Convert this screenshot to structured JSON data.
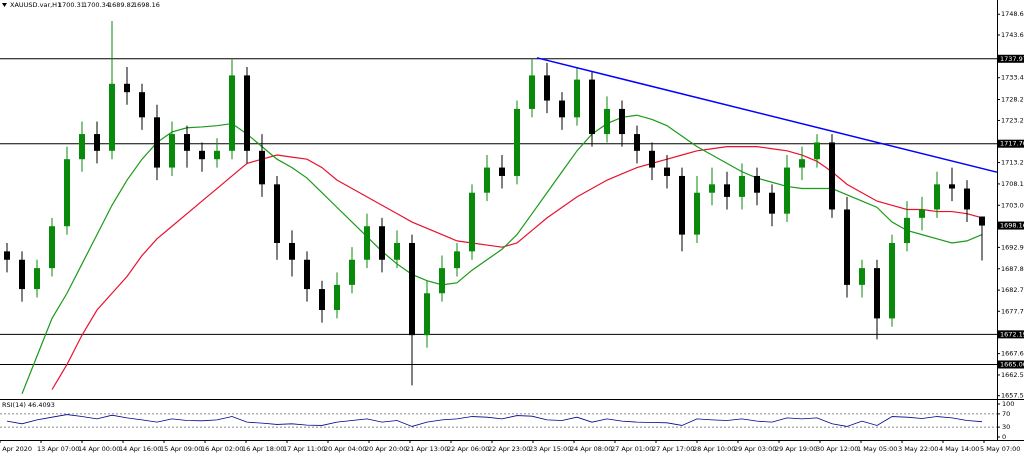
{
  "chart_data": {
    "type": "candlestick",
    "symbol": "XAUUSD.var,H1",
    "ohlc": {
      "open": [
        1692,
        1690,
        1683,
        1688,
        1698,
        1714,
        1720,
        1716,
        1732,
        1730,
        1724,
        1712,
        1720,
        1716,
        1714,
        1716,
        1734,
        1716,
        1708,
        1694,
        1690,
        1683,
        1678,
        1684,
        1690,
        1698,
        1690,
        1694,
        1672,
        1682,
        1688,
        1692,
        1706,
        1712,
        1710,
        1726,
        1734,
        1728,
        1724,
        1733,
        1720,
        1726,
        1720,
        1716,
        1712,
        1710,
        1696,
        1706,
        1708,
        1705,
        1710,
        1706,
        1701,
        1712,
        1714,
        1718,
        1702,
        1684,
        1688,
        1676,
        1694,
        1700,
        1702,
        1708,
        1707,
        1700.31
      ],
      "high": [
        1694,
        1692,
        1690,
        1700,
        1717,
        1723,
        1723,
        1747,
        1736,
        1732,
        1727,
        1723,
        1722,
        1718,
        1719,
        1738,
        1736,
        1720,
        1710,
        1697,
        1692,
        1685,
        1687,
        1693,
        1701,
        1700,
        1697,
        1696,
        1685,
        1691,
        1694,
        1708,
        1715,
        1715,
        1728,
        1738,
        1737,
        1730,
        1736,
        1735,
        1729,
        1728,
        1722,
        1718,
        1715,
        1712,
        1710,
        1712,
        1711,
        1713,
        1712,
        1708,
        1715,
        1717,
        1720,
        1720,
        1705,
        1690,
        1690,
        1696,
        1704,
        1705,
        1711,
        1712,
        1709,
        1700.34
      ],
      "low": [
        1687,
        1680,
        1681,
        1686,
        1696,
        1711,
        1713,
        1714,
        1727,
        1721,
        1709,
        1710,
        1712,
        1711,
        1712,
        1714,
        1713,
        1705,
        1690,
        1686,
        1680,
        1675,
        1676,
        1682,
        1688,
        1687,
        1688,
        1660,
        1669,
        1680,
        1686,
        1690,
        1704,
        1707,
        1708,
        1724,
        1725,
        1721,
        1722,
        1717,
        1718,
        1717,
        1713,
        1709,
        1707,
        1692,
        1694,
        1703,
        1702,
        1702,
        1703,
        1698,
        1699,
        1709,
        1712,
        1700,
        1681,
        1681,
        1671,
        1674,
        1692,
        1697,
        1700,
        1704,
        1699,
        1689.82
      ],
      "close": [
        1690,
        1683,
        1688,
        1698,
        1714,
        1720,
        1716,
        1732,
        1730,
        1724,
        1712,
        1720,
        1716,
        1714,
        1716,
        1734,
        1716,
        1708,
        1694,
        1690,
        1683,
        1678,
        1684,
        1690,
        1698,
        1690,
        1694,
        1672,
        1682,
        1688,
        1692,
        1706,
        1712,
        1710,
        1726,
        1734,
        1728,
        1724,
        1733,
        1720,
        1726,
        1720,
        1716,
        1712,
        1710,
        1696,
        1706,
        1708,
        1705,
        1710,
        1706,
        1701,
        1712,
        1714,
        1718,
        1702,
        1684,
        1688,
        1676,
        1694,
        1700,
        1702,
        1708,
        1707,
        1702,
        1698.16
      ]
    },
    "up_color": "#0a8a0a",
    "down_color": "#000000",
    "ylim": [
      1657,
      1752
    ],
    "yticks": [
      {
        "value": 1748.6,
        "label": "1748.60"
      },
      1743.65,
      1733.45,
      1728.25,
      1723.25,
      {
        "value": 1713.2,
        "label": "1713.20"
      },
      {
        "value": 1708.1,
        "label": "1708.10"
      },
      {
        "value": 1703,
        "label": "1703.00"
      },
      1692.95,
      1687.85,
      1682.75,
      {
        "value": 1677.7,
        "label": "1677.70"
      },
      {
        "value": 1667.6,
        "label": "1667.60"
      },
      {
        "value": 1662.5,
        "label": "1662.50"
      },
      1657.55
    ],
    "levels": [
      {
        "value": 1737.97,
        "label": "1737.97"
      },
      {
        "value": 1717.7,
        "label": "1717.70"
      },
      {
        "value": 1672.19,
        "label": "1672.19"
      },
      {
        "value": 1665,
        "label": "1665.00"
      }
    ],
    "last_price": {
      "value": 1698.16,
      "label": "1698.16"
    },
    "trendline": {
      "color": "#0000ff",
      "x": [
        35.33,
        66
      ],
      "y": [
        1738.2,
        1710.9
      ]
    },
    "moving_averages": [
      {
        "color": "#e8112d",
        "values": [
          null,
          null,
          null,
          1659,
          1665,
          1672,
          1678,
          1682,
          1686,
          1691,
          1695,
          1698,
          1701,
          1704,
          1707,
          1710,
          1713,
          1714,
          1715,
          1714.5,
          1714,
          1712,
          1709,
          1707,
          1705,
          1703,
          1701,
          1699,
          1697.5,
          1696,
          1694.5,
          1694,
          1693.5,
          1693,
          1694,
          1697,
          1700,
          1702.5,
          1705,
          1707,
          1709,
          1710.5,
          1712,
          1713,
          1714,
          1715,
          1716,
          1716.5,
          1717,
          1717,
          1717,
          1716.5,
          1716,
          1715,
          1713.5,
          1711,
          1708,
          1706,
          1704,
          1703,
          1702,
          1702,
          1701.5,
          1701.5,
          1701,
          1700
        ]
      },
      {
        "color": "#1a9a1a",
        "values": [
          null,
          1658,
          1667,
          1676,
          1682,
          1689,
          1696,
          1703,
          1709,
          1714,
          1718,
          1720.5,
          1721.5,
          1721.7,
          1722,
          1722.5,
          1720,
          1717,
          1714,
          1712,
          1709.5,
          1706,
          1702.5,
          1699,
          1695.5,
          1692,
          1689,
          1686.5,
          1685,
          1684,
          1684.5,
          1687.5,
          1690,
          1692.5,
          1696,
          1701,
          1706,
          1711,
          1716,
          1720,
          1722.5,
          1724,
          1724.5,
          1723.5,
          1722,
          1719.5,
          1717,
          1715,
          1713,
          1711,
          1709.5,
          1708.5,
          1707.5,
          1707,
          1707,
          1707,
          1705.5,
          1704,
          1702.5,
          1699,
          1697,
          1696,
          1695,
          1694,
          1694.5,
          1696
        ]
      }
    ],
    "time_labels": [
      "9 Apr 2020",
      "13 Apr 07:00",
      "14 Apr 00:00",
      "14 Apr 16:00",
      "15 Apr 09:00",
      "16 Apr 02:00",
      "16 Apr 18:00",
      "17 Apr 11:00",
      "20 Apr 04:00",
      "20 Apr 20:00",
      "21 Apr 13:00",
      "22 Apr 06:00",
      "22 Apr 23:00",
      "23 Apr 15:00",
      "24 Apr 08:00",
      "27 Apr 01:00",
      "27 Apr 17:00",
      "28 Apr 10:00",
      "29 Apr 03:00",
      "29 Apr 19:00",
      "30 Apr 12:00",
      "1 May 05:00",
      "3 May 22:00",
      "4 May 14:00",
      "5 May 07:00"
    ],
    "rsi": {
      "name": "RSI(14)",
      "color": "#00008b",
      "values": [
        48,
        40,
        52,
        60,
        68,
        62,
        55,
        66,
        58,
        52,
        45,
        55,
        50,
        49,
        52,
        62,
        45,
        42,
        38,
        40,
        36,
        35,
        45,
        50,
        55,
        45,
        50,
        32,
        45,
        52,
        55,
        62,
        60,
        55,
        65,
        63,
        52,
        50,
        60,
        45,
        55,
        48,
        45,
        44,
        43,
        35,
        55,
        52,
        50,
        55,
        48,
        45,
        58,
        55,
        58,
        40,
        32,
        48,
        35,
        62,
        60,
        56,
        62,
        58,
        50,
        46.4093
      ],
      "ylim": [
        0,
        100
      ],
      "yticks": [
        100,
        70,
        30,
        0
      ],
      "levels": [
        70,
        30
      ]
    }
  }
}
